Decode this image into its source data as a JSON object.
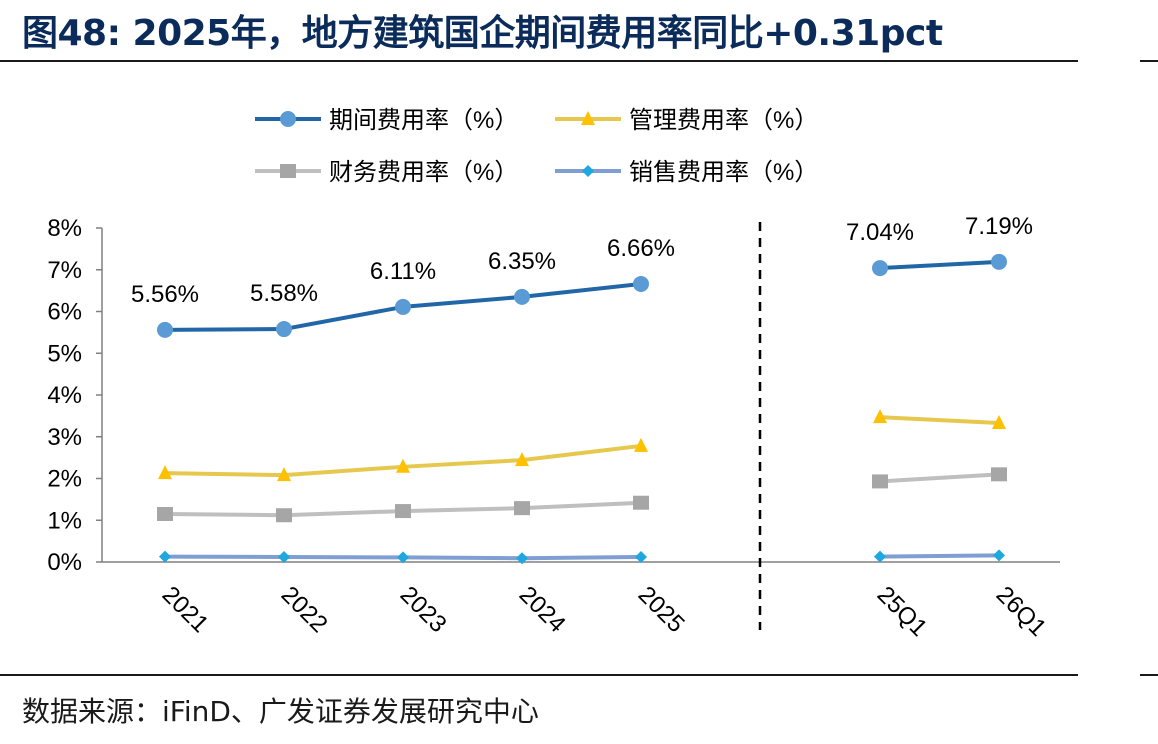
{
  "title": "图48: 2025年，地方建筑国企期间费用率同比+0.31pct",
  "source": "数据来源：iFinD、广发证券发展研究中心",
  "colors": {
    "title": "#0b2c5a",
    "period": "#2167a8",
    "period_marker": "#5b9bd5",
    "admin": "#e6c84f",
    "admin_marker": "#ffc000",
    "finance": "#bfbfbf",
    "finance_marker": "#a6a6a6",
    "sales": "#7f9fd3",
    "sales_marker": "#1fa7e0"
  },
  "chart_data": {
    "type": "line",
    "ylim": [
      0,
      8
    ],
    "yticks": [
      "0%",
      "1%",
      "2%",
      "3%",
      "4%",
      "5%",
      "6%",
      "7%",
      "8%"
    ],
    "groups": [
      {
        "categories": [
          "2021",
          "2022",
          "2023",
          "2024",
          "2025"
        ]
      },
      {
        "categories": [
          "25Q1",
          "26Q1"
        ]
      }
    ],
    "legend_position": "top",
    "series": [
      {
        "name": "期间费用率（%）",
        "marker": "circle",
        "values": [
          [
            5.56,
            5.58,
            6.11,
            6.35,
            6.66
          ],
          [
            7.04,
            7.19
          ]
        ],
        "labels": [
          [
            "5.56%",
            "5.58%",
            "6.11%",
            "6.35%",
            "6.66%"
          ],
          [
            "7.04%",
            "7.19%"
          ]
        ]
      },
      {
        "name": "管理费用率（%）",
        "marker": "triangle",
        "values": [
          [
            2.13,
            2.08,
            2.28,
            2.44,
            2.78
          ],
          [
            3.47,
            3.33
          ]
        ]
      },
      {
        "name": "财务费用率（%）",
        "marker": "square",
        "values": [
          [
            1.15,
            1.12,
            1.22,
            1.29,
            1.42
          ],
          [
            1.93,
            2.1
          ]
        ]
      },
      {
        "name": "销售费用率（%）",
        "marker": "diamond",
        "values": [
          [
            0.13,
            0.12,
            0.11,
            0.09,
            0.12
          ],
          [
            0.13,
            0.16
          ]
        ]
      }
    ]
  }
}
